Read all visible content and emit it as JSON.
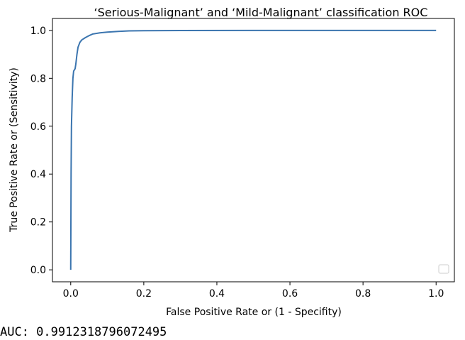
{
  "chart_data": {
    "type": "line",
    "title": "‘Serious-Malignant’ and ‘Mild-Malignant’ classification ROC",
    "xlabel": "False Positive Rate or (1 - Specifity)",
    "ylabel": "True Positive Rate or (Sensitivity)",
    "xlim": [
      -0.05,
      1.05
    ],
    "ylim": [
      -0.05,
      1.05
    ],
    "xticks": [
      0.0,
      0.2,
      0.4,
      0.6,
      0.8,
      1.0
    ],
    "yticks": [
      0.0,
      0.2,
      0.4,
      0.6,
      0.8,
      1.0
    ],
    "xtick_labels": [
      "0.0",
      "0.2",
      "0.4",
      "0.6",
      "0.8",
      "1.0"
    ],
    "ytick_labels": [
      "0.0",
      "0.2",
      "0.4",
      "0.6",
      "0.8",
      "1.0"
    ],
    "grid": false,
    "legend": "lower-right (empty)",
    "series": [
      {
        "color": "#3b75af",
        "x": [
          0.0,
          0.001,
          0.002,
          0.004,
          0.006,
          0.008,
          0.012,
          0.014,
          0.017,
          0.02,
          0.025,
          0.03,
          0.04,
          0.05,
          0.06,
          0.08,
          0.1,
          0.13,
          0.16,
          0.2,
          0.3,
          0.5,
          0.7,
          1.0
        ],
        "y": [
          0.0,
          0.4,
          0.6,
          0.72,
          0.8,
          0.83,
          0.84,
          0.86,
          0.9,
          0.93,
          0.95,
          0.96,
          0.97,
          0.978,
          0.985,
          0.99,
          0.993,
          0.996,
          0.998,
          0.999,
          0.9995,
          1.0,
          1.0,
          1.0
        ]
      }
    ]
  },
  "output": {
    "auc_text": "AUC: 0.9912318796072495"
  }
}
